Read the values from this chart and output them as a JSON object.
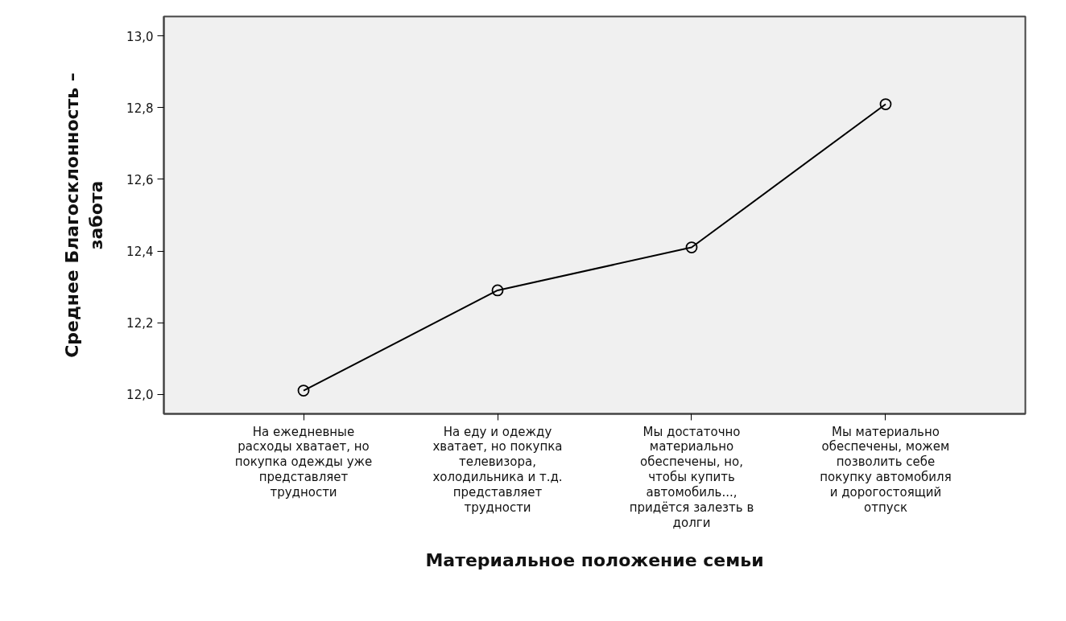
{
  "chart_data": {
    "type": "line",
    "xlabel": "Материальное положение семьи",
    "ylabel": "Среднее Благосклонность – забота",
    "categories": [
      "На ежедневные расходы хватает, но покупка одежды уже представляет трудности",
      "На еду и одежду хватает, но покупка телевизора, холодильника и т.д. представляет трудности",
      "Мы достаточно материально обеспечены, но, чтобы купить автомобиль..., придётся залезть в долги",
      "Мы материально обеспечены, можем позволить себе покупку автомобиля и дорогостоящий отпуск"
    ],
    "values": [
      12.01,
      12.29,
      12.41,
      12.81
    ],
    "color": "#000000",
    "ylim": [
      11.945,
      13.055
    ],
    "yticks": [
      {
        "value": 12.0,
        "label": "12,0"
      },
      {
        "value": 12.2,
        "label": "12,2"
      },
      {
        "value": 12.4,
        "label": "12,4"
      },
      {
        "value": 12.6,
        "label": "12,6"
      },
      {
        "value": 12.8,
        "label": "12,8"
      },
      {
        "value": 13.0,
        "label": "13,0"
      }
    ],
    "grid": false,
    "marker": "circle",
    "line_style": "solid"
  }
}
